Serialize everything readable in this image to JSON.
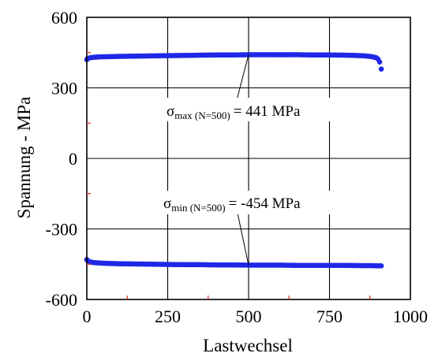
{
  "chart_data": {
    "type": "scatter",
    "title": "",
    "xlabel": "Lastwechsel",
    "ylabel": "Spannung - MPa",
    "xlim": [
      0,
      1000
    ],
    "ylim": [
      -600,
      600
    ],
    "x_ticks": [
      "0",
      "250",
      "500",
      "750",
      "1000"
    ],
    "y_ticks": [
      "600",
      "300",
      "0",
      "-300",
      "-600"
    ],
    "grid": true,
    "colors": {
      "points": "#1e28e6",
      "minor_ticks": "#e02020",
      "grid": "#000000"
    },
    "series": [
      {
        "x": [
          0,
          2,
          5,
          10,
          20,
          40,
          75,
          100,
          150,
          200,
          250,
          300,
          350,
          400,
          450,
          500,
          550,
          600,
          650,
          700,
          750,
          800,
          830,
          860,
          880,
          895,
          900,
          905,
          910
        ],
        "y": [
          420,
          424,
          426,
          428,
          430,
          432,
          433,
          434,
          435,
          436,
          437,
          438,
          439,
          440,
          440,
          441,
          441,
          441,
          441,
          440,
          440,
          439,
          438,
          436,
          433,
          428,
          422,
          410,
          380
        ]
      },
      {
        "x": [
          0,
          2,
          5,
          10,
          20,
          40,
          75,
          100,
          150,
          200,
          250,
          300,
          350,
          400,
          450,
          500,
          550,
          600,
          650,
          700,
          750,
          800,
          850,
          880,
          900,
          910
        ],
        "y": [
          -430,
          -434,
          -437,
          -440,
          -443,
          -445,
          -447,
          -448,
          -449,
          -450,
          -451,
          -452,
          -452,
          -453,
          -453,
          -454,
          -454,
          -454,
          -455,
          -455,
          -455,
          -455,
          -456,
          -456,
          -457,
          -457
        ]
      }
    ],
    "annotations": [
      {
        "symbol": "σ",
        "subscript": "max (N=500)",
        "text": "= 441 MPa",
        "target": [
          500,
          441
        ]
      },
      {
        "symbol": "σ",
        "subscript": "min (N=500)",
        "text": "= -454 MPa",
        "target": [
          500,
          -454
        ]
      }
    ]
  }
}
